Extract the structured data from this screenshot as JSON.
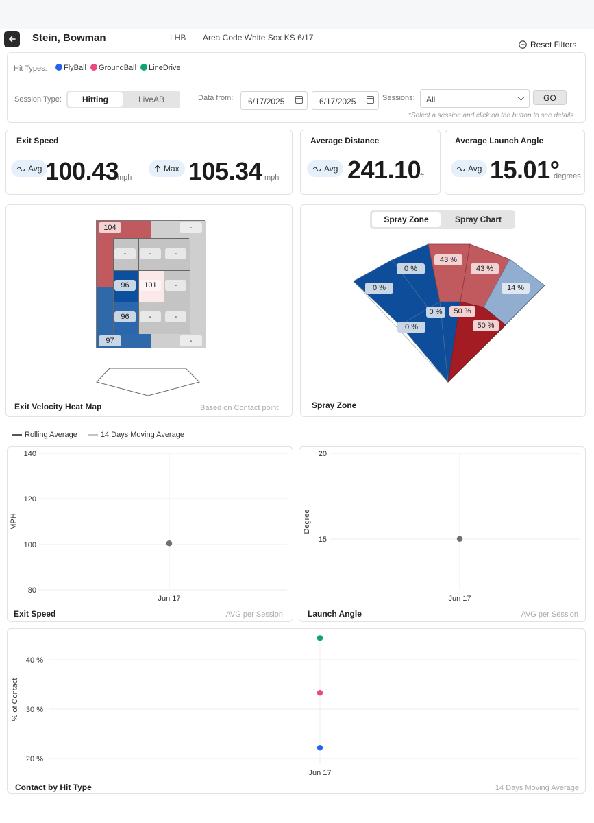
{
  "header": {
    "player": "Stein, Bowman",
    "handedness": "LHB",
    "event": "Area Code White Sox KS 6/17",
    "reset_label": "Reset Filters"
  },
  "filters": {
    "hit_types_label": "Hit Types:",
    "hit_types": [
      {
        "label": "FlyBall",
        "color": "#2563eb"
      },
      {
        "label": "GroundBall",
        "color": "#ec4a7a"
      },
      {
        "label": "LineDrive",
        "color": "#10a37a"
      }
    ],
    "session_type_label": "Session Type:",
    "session_types": [
      "Hitting",
      "LiveAB"
    ],
    "selected_session_type": "Hitting",
    "data_from_label": "Data from:",
    "date_from": "6/17/2025",
    "date_to": "6/17/2025",
    "sessions_label": "Sessions:",
    "sessions_value": "All",
    "go_label": "GO",
    "hint": "*Select a session and click on the button to see details"
  },
  "stats": {
    "exit_speed": {
      "title": "Exit Speed",
      "avg_label": "Avg",
      "avg": "100.43",
      "avg_unit": "mph",
      "max_label": "Max",
      "max": "105.34",
      "max_unit": "mph"
    },
    "distance": {
      "title": "Average Distance",
      "avg_label": "Avg",
      "value": "241.10",
      "unit": "ft"
    },
    "launch": {
      "title": "Average Launch Angle",
      "avg_label": "Avg",
      "value": "15.01°",
      "unit": "degrees"
    }
  },
  "heatmap": {
    "title": "Exit Velocity Heat Map",
    "note": "Based on Contact point",
    "cells": [
      "104",
      "-",
      "-",
      "-",
      "-",
      "96",
      "101",
      "-",
      "96",
      "-",
      "-",
      "97",
      "-"
    ]
  },
  "spray": {
    "tabs": [
      "Spray Zone",
      "Spray Chart"
    ],
    "active_tab": "Spray Zone",
    "title": "Spray Zone",
    "zones": [
      "0 %",
      "0 %",
      "43 %",
      "43 %",
      "14 %",
      "0 %",
      "50 %",
      "0 %",
      "50 %"
    ]
  },
  "trend_legend": [
    "Rolling Average",
    "14 Days Moving Average"
  ],
  "chart_data": [
    {
      "type": "scatter",
      "title": "Exit Speed",
      "note": "AVG per Session",
      "ylabel": "MPH",
      "ylim": [
        80,
        140
      ],
      "yticks": [
        140,
        120,
        100,
        80
      ],
      "categories": [
        "Jun 17"
      ],
      "series": [
        {
          "values": [
            100.43
          ],
          "color": "#707070"
        }
      ]
    },
    {
      "type": "scatter",
      "title": "Launch Angle",
      "note": "AVG per Session",
      "ylabel": "Degree",
      "ylim": [
        10,
        20
      ],
      "yticks": [
        20,
        15
      ],
      "categories": [
        "Jun 17"
      ],
      "series": [
        {
          "values": [
            15.01
          ],
          "color": "#707070"
        }
      ]
    },
    {
      "type": "scatter",
      "title": "Contact by Hit Type",
      "note": "14 Days Moving Average",
      "ylabel": "% of Contact",
      "ylim": [
        20,
        45
      ],
      "yticks": [
        "40 %",
        "30 %",
        "20 %"
      ],
      "categories": [
        "Jun 17"
      ],
      "series": [
        {
          "values": [
            44.4
          ],
          "color": "#10a37a"
        },
        {
          "values": [
            33.3
          ],
          "color": "#ec4a7a"
        },
        {
          "values": [
            22.2
          ],
          "color": "#2563eb"
        }
      ]
    }
  ]
}
